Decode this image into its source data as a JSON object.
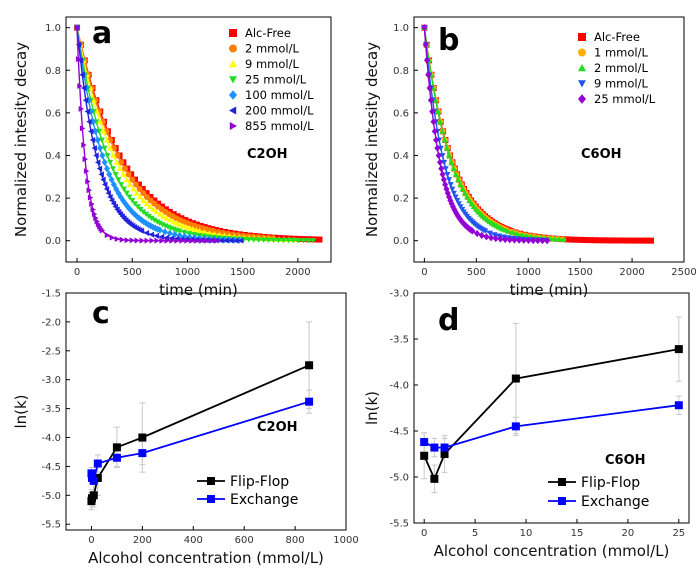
{
  "chart_data": [
    {
      "panel": "a",
      "type": "scatter",
      "condition_label": "C2OH",
      "xlabel": "time (min)",
      "ylabel": "Normalized intesity decay",
      "xlim": [
        -100,
        2300
      ],
      "ylim": [
        -0.1,
        1.05
      ],
      "x_ticks": [
        "0",
        "500",
        "1000",
        "1500",
        "2000"
      ],
      "y_ticks": [
        "0.0",
        "0.2",
        "0.4",
        "0.6",
        "0.8",
        "1.0"
      ],
      "legend_position": "top-right",
      "series": [
        {
          "name": "Alc-Free",
          "color": "#ff0000",
          "marker": "square",
          "tau": 420,
          "xmax": 2200
        },
        {
          "name": "2 mmol/L",
          "color": "#ff7f00",
          "marker": "circle",
          "tau": 400,
          "xmax": 1800
        },
        {
          "name": "9 mmol/L",
          "color": "#ffff00",
          "marker": "triangle-up",
          "tau": 360,
          "xmax": 2000
        },
        {
          "name": "25 mmol/L",
          "color": "#22dd22",
          "marker": "triangle-down",
          "tau": 300,
          "xmax": 2150
        },
        {
          "name": "100 mmol/L",
          "color": "#1e90ff",
          "marker": "diamond",
          "tau": 250,
          "xmax": 1500
        },
        {
          "name": "200 mmol/L",
          "color": "#2222dd",
          "marker": "triangle-left",
          "tau": 190,
          "xmax": 1500
        },
        {
          "name": "855 mmol/L",
          "color": "#9400d3",
          "marker": "triangle-right",
          "tau": 75,
          "xmax": 1300
        }
      ]
    },
    {
      "panel": "b",
      "type": "scatter",
      "condition_label": "C6OH",
      "xlabel": "time (min)",
      "ylabel": "Normalized intesity decay",
      "xlim": [
        -100,
        2500
      ],
      "ylim": [
        -0.1,
        1.05
      ],
      "x_ticks": [
        "0",
        "500",
        "1000",
        "1500",
        "2000",
        "2500"
      ],
      "y_ticks": [
        "0.0",
        "0.2",
        "0.4",
        "0.6",
        "0.8",
        "1.0"
      ],
      "legend_position": "top-right",
      "series": [
        {
          "name": "Alc-Free",
          "color": "#ff0000",
          "marker": "square",
          "tau": 270,
          "xmax": 2200
        },
        {
          "name": "1 mmol/L",
          "color": "#ffb300",
          "marker": "circle",
          "tau": 265,
          "xmax": 1350
        },
        {
          "name": "2 mmol/L",
          "color": "#22dd22",
          "marker": "triangle-up",
          "tau": 260,
          "xmax": 1350
        },
        {
          "name": "9 mmol/L",
          "color": "#2255ee",
          "marker": "triangle-down",
          "tau": 190,
          "xmax": 1200
        },
        {
          "name": "25 mmol/L",
          "color": "#9400d3",
          "marker": "diamond",
          "tau": 150,
          "xmax": 1200
        }
      ]
    },
    {
      "panel": "c",
      "type": "line",
      "condition_label": "C2OH",
      "xlabel": "Alcohol concentration (mmol/L)",
      "ylabel": "ln(k)",
      "xlim": [
        -100,
        1000
      ],
      "ylim": [
        -5.6,
        -1.5
      ],
      "x_ticks": [
        "0",
        "200",
        "400",
        "600",
        "800",
        "1000"
      ],
      "y_ticks": [
        "-1.5",
        "-2.0",
        "-2.5",
        "-3.0",
        "-3.5",
        "-4.0",
        "-4.5",
        "-5.0",
        "-5.5"
      ],
      "legend_position": "bottom-right",
      "series": [
        {
          "name": "Flip-Flop",
          "color": "#000000",
          "x": [
            0,
            2,
            9,
            25,
            100,
            200,
            855
          ],
          "y": [
            -5.1,
            -5.05,
            -5.0,
            -4.7,
            -4.17,
            -4.0,
            -2.75
          ],
          "err": [
            0.15,
            0.15,
            0.2,
            0.3,
            0.35,
            0.6,
            0.75
          ]
        },
        {
          "name": "Exchange",
          "color": "#0000ff",
          "x": [
            0,
            2,
            9,
            25,
            100,
            200,
            855
          ],
          "y": [
            -4.62,
            -4.7,
            -4.75,
            -4.45,
            -4.35,
            -4.27,
            -3.38
          ],
          "err": [
            0.1,
            0.1,
            0.15,
            0.15,
            0.15,
            0.2,
            0.2
          ]
        }
      ]
    },
    {
      "panel": "d",
      "type": "line",
      "condition_label": "C6OH",
      "xlabel": "Alcohol concentration (mmol/L)",
      "ylabel": "ln(k)",
      "xlim": [
        -1,
        26
      ],
      "ylim": [
        -5.5,
        -3.0
      ],
      "x_ticks": [
        "0",
        "5",
        "10",
        "15",
        "20",
        "25"
      ],
      "y_ticks": [
        "-3.0",
        "-3.5",
        "-4.0",
        "-4.5",
        "-5.0",
        "-5.5"
      ],
      "legend_position": "bottom-right",
      "series": [
        {
          "name": "Flip-Flop",
          "color": "#000000",
          "x": [
            0,
            1,
            2,
            9,
            25
          ],
          "y": [
            -4.77,
            -5.02,
            -4.75,
            -3.93,
            -3.61
          ],
          "err": [
            0.25,
            0.15,
            0.2,
            0.6,
            0.35
          ]
        },
        {
          "name": "Exchange",
          "color": "#0000ff",
          "x": [
            0,
            1,
            2,
            9,
            25
          ],
          "y": [
            -4.62,
            -4.68,
            -4.68,
            -4.45,
            -4.22
          ],
          "err": [
            0.1,
            0.1,
            0.1,
            0.1,
            0.1
          ]
        }
      ]
    }
  ]
}
